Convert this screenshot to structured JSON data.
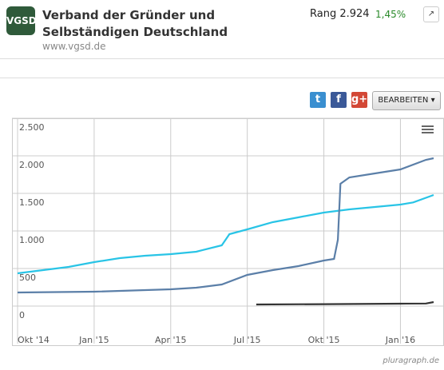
{
  "header": {
    "logo": "VGSD",
    "title": "Verband der Gründer und Selbständigen Deutschland",
    "url": "www.vgsd.de",
    "rank": "Rang 2.924",
    "change": "1,45%",
    "expand": "↗"
  },
  "toolbar": {
    "share": [
      "t",
      "f",
      "g+"
    ],
    "edit": "BEARBEITEN ▾"
  },
  "credit": "pluragraph.de",
  "chart_data": {
    "type": "line",
    "xlim": [
      0,
      16.3
    ],
    "xticks": [
      {
        "value": 0,
        "label": "Okt '14"
      },
      {
        "value": 3,
        "label": "Jan '15"
      },
      {
        "value": 6,
        "label": "Apr '15"
      },
      {
        "value": 9,
        "label": "Jul '15"
      },
      {
        "value": 12,
        "label": "Okt '15"
      },
      {
        "value": 15,
        "label": "Jan '16"
      }
    ],
    "ylim": [
      -500,
      2500
    ],
    "yticks": [
      {
        "value": 0,
        "label": "0"
      },
      {
        "value": 500,
        "label": "500"
      },
      {
        "value": 1000,
        "label": "1.000"
      },
      {
        "value": 1500,
        "label": "1.500"
      },
      {
        "value": 2000,
        "label": "2.000"
      },
      {
        "value": 2500,
        "label": "2.500"
      }
    ],
    "grid": true,
    "series": [
      {
        "color": "#29c4e6",
        "x": [
          0,
          1,
          2,
          3,
          4,
          5,
          6,
          7,
          8,
          8.3,
          9,
          10,
          11,
          12,
          13,
          14,
          15,
          15.5,
          16.3
        ],
        "values": [
          436,
          479,
          521,
          585,
          638,
          670,
          691,
          723,
          808,
          957,
          1021,
          1117,
          1181,
          1245,
          1287,
          1319,
          1351,
          1380,
          1479
        ]
      },
      {
        "color": "#5b7fa8",
        "x": [
          0,
          3,
          6,
          7,
          8,
          9,
          10,
          11,
          12,
          12.4,
          12.55,
          12.65,
          13,
          14,
          15,
          16,
          16.3
        ],
        "values": [
          181,
          191,
          223,
          245,
          287,
          415,
          479,
          532,
          606,
          628,
          883,
          1628,
          1713,
          1766,
          1819,
          1947,
          1968
        ]
      },
      {
        "color": "#333333",
        "x": [
          9.35,
          12,
          15,
          16,
          16.3
        ],
        "values": [
          21,
          26,
          32,
          34,
          53
        ]
      }
    ]
  }
}
